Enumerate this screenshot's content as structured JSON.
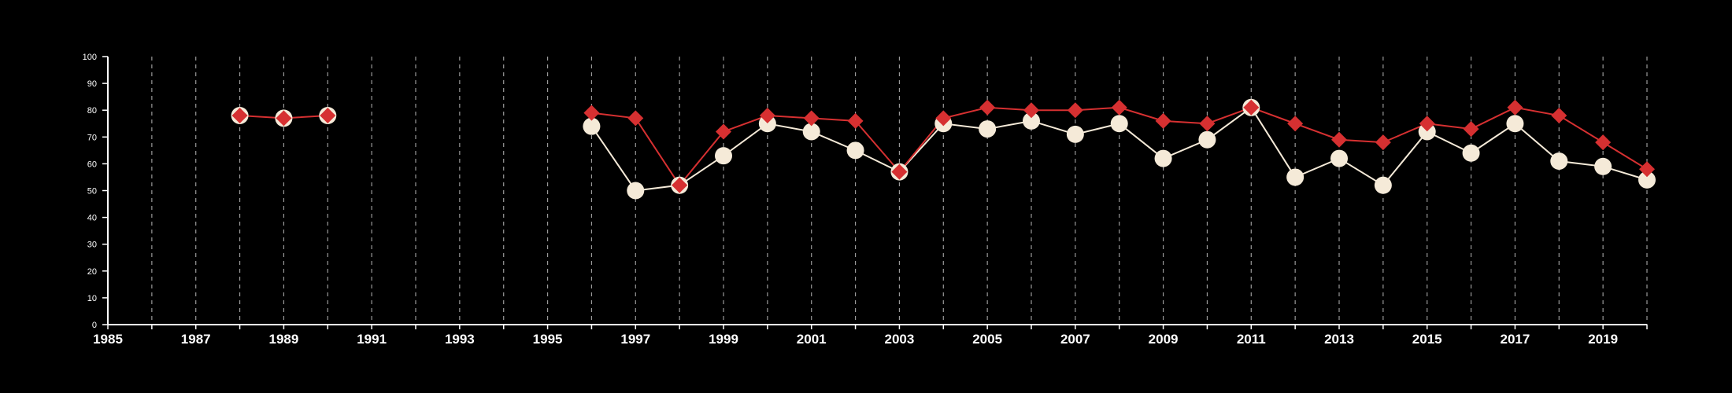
{
  "chart_data": {
    "type": "line",
    "title": "",
    "xlabel": "",
    "ylabel": "",
    "xlim": [
      1985,
      2020
    ],
    "ylim": [
      0,
      100
    ],
    "x_ticks": [
      1985,
      1987,
      1989,
      1991,
      1993,
      1995,
      1997,
      1999,
      2001,
      2003,
      2005,
      2007,
      2009,
      2011,
      2013,
      2015,
      2017,
      2019
    ],
    "y_ticks": [
      0,
      10,
      20,
      30,
      40,
      50,
      60,
      70,
      80,
      90,
      100
    ],
    "grid": "vertical dashed lines at each year",
    "background": "#000000",
    "series": [
      {
        "color": "#f5ead8",
        "marker": "circle",
        "points": [
          [
            1996,
            74
          ],
          [
            1997,
            50
          ],
          [
            1998,
            52
          ],
          [
            1999,
            63
          ],
          [
            2000,
            75
          ],
          [
            2001,
            72
          ],
          [
            2002,
            65
          ],
          [
            2003,
            57
          ],
          [
            2004,
            75
          ],
          [
            2005,
            73
          ],
          [
            2006,
            76
          ],
          [
            2007,
            71
          ],
          [
            2008,
            75
          ],
          [
            2009,
            62
          ],
          [
            2010,
            69
          ],
          [
            2011,
            81
          ],
          [
            2012,
            55
          ],
          [
            2013,
            62
          ],
          [
            2014,
            52
          ],
          [
            2015,
            72
          ],
          [
            2016,
            64
          ],
          [
            2017,
            75
          ],
          [
            2018,
            61
          ],
          [
            2019,
            59
          ],
          [
            2020,
            54
          ]
        ]
      },
      {
        "color": "#d63031",
        "marker": "diamond",
        "segments": [
          [
            [
              1988,
              78
            ],
            [
              1989,
              77
            ],
            [
              1990,
              78
            ]
          ],
          [
            [
              1996,
              79
            ],
            [
              1997,
              77
            ],
            [
              1998,
              52
            ],
            [
              1999,
              72
            ],
            [
              2000,
              78
            ],
            [
              2001,
              77
            ],
            [
              2002,
              76
            ],
            [
              2003,
              57
            ],
            [
              2004,
              77
            ],
            [
              2005,
              81
            ],
            [
              2006,
              80
            ],
            [
              2007,
              80
            ],
            [
              2008,
              81
            ],
            [
              2009,
              76
            ],
            [
              2010,
              75
            ],
            [
              2011,
              81
            ],
            [
              2012,
              75
            ],
            [
              2013,
              69
            ],
            [
              2014,
              68
            ],
            [
              2015,
              75
            ],
            [
              2016,
              73
            ],
            [
              2017,
              81
            ],
            [
              2018,
              78
            ],
            [
              2019,
              68
            ],
            [
              2020,
              58
            ]
          ]
        ],
        "background_markers": [
          [
            1988,
            78
          ],
          [
            1989,
            77
          ],
          [
            1990,
            78
          ]
        ]
      }
    ]
  }
}
